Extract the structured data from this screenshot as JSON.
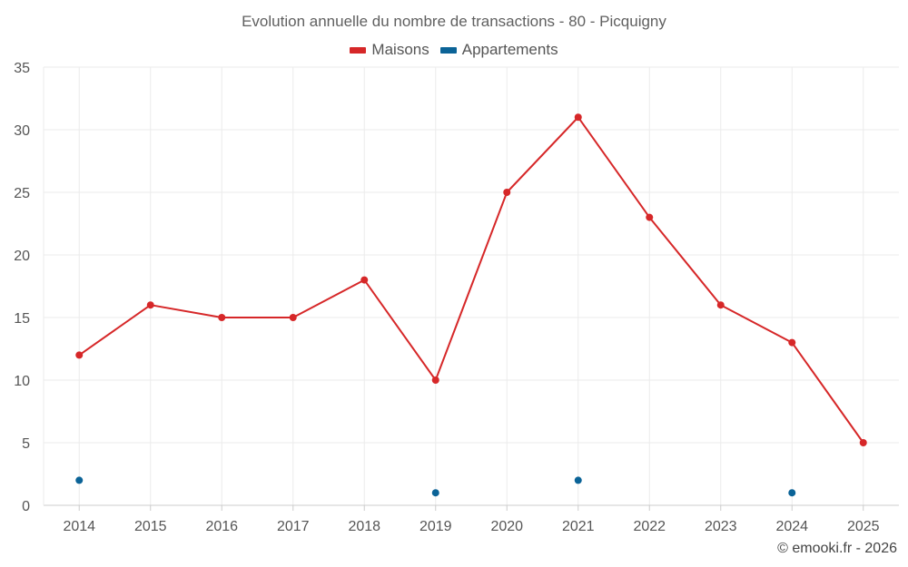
{
  "chart_data": {
    "type": "line",
    "title": "Evolution annuelle du nombre de transactions - 80 - Picquigny",
    "categories": [
      "2014",
      "2015",
      "2016",
      "2017",
      "2018",
      "2019",
      "2020",
      "2021",
      "2022",
      "2023",
      "2024",
      "2025"
    ],
    "series": [
      {
        "name": "Maisons",
        "color": "#d62728",
        "show_line": true,
        "values": [
          12,
          16,
          15,
          15,
          18,
          10,
          25,
          31,
          23,
          16,
          13,
          5
        ]
      },
      {
        "name": "Appartements",
        "color": "#0b6397",
        "show_line": false,
        "values": [
          2,
          null,
          null,
          null,
          null,
          1,
          null,
          2,
          null,
          null,
          1,
          null
        ]
      }
    ],
    "xlabel": "",
    "ylabel": "",
    "ylim": [
      0,
      35
    ],
    "yticks": [
      0,
      5,
      10,
      15,
      20,
      25,
      30,
      35
    ],
    "legend_position": "top-center",
    "grid": true
  },
  "credit": "© emooki.fr - 2026"
}
